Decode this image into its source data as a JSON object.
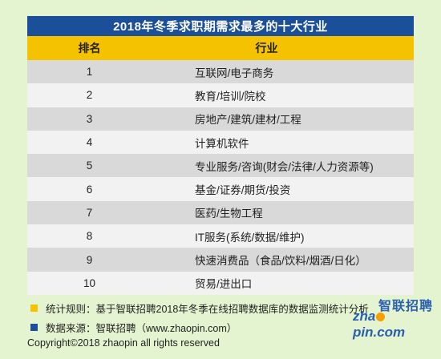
{
  "table": {
    "title": "2018年冬季求职期需求最多的十大行业",
    "headers": {
      "rank": "排名",
      "industry": "行业"
    },
    "rows": [
      {
        "rank": "1",
        "industry": "互联网/电子商务"
      },
      {
        "rank": "2",
        "industry": "教育/培训/院校"
      },
      {
        "rank": "3",
        "industry": "房地产/建筑/建材/工程"
      },
      {
        "rank": "4",
        "industry": "计算机软件"
      },
      {
        "rank": "5",
        "industry": "专业服务/咨询(财会/法律/人力资源等)"
      },
      {
        "rank": "6",
        "industry": "基金/证券/期货/投资"
      },
      {
        "rank": "7",
        "industry": "医药/生物工程"
      },
      {
        "rank": "8",
        "industry": "IT服务(系统/数据/维护)"
      },
      {
        "rank": "9",
        "industry": "快速消费品（食品/饮料/烟酒/日化）"
      },
      {
        "rank": "10",
        "industry": "贸易/进出口"
      }
    ]
  },
  "notes": {
    "rule": "统计规则：基于智联招聘2018年冬季在线招聘数据库的数据监测统计分析",
    "source": "数据来源：智联招聘（www.zhaopin.com）"
  },
  "copyright": "Copyright©2018 zhaopin all rights reserved",
  "logo": {
    "cn": "智联招聘",
    "en_a": "zha",
    "en_b": "pin.com"
  },
  "colors": {
    "background": "#e5f4d0",
    "title_bar": "#1c4f9a",
    "header_bar": "#f5c200",
    "row_odd": "#d9d9d9",
    "row_even": "#f2f2f2"
  }
}
